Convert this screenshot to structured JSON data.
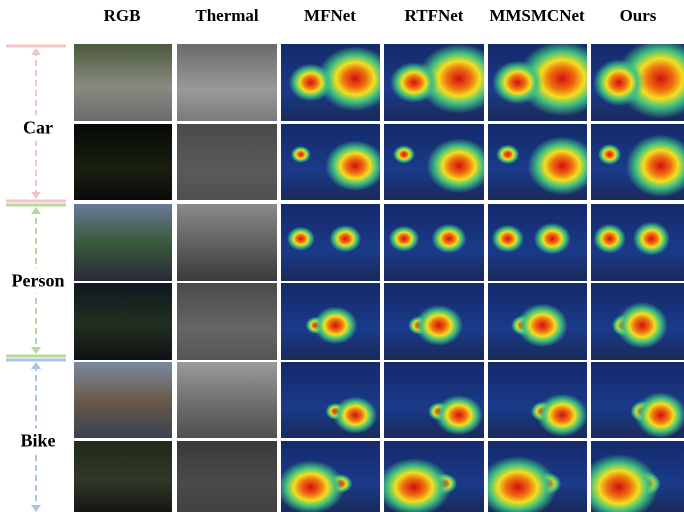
{
  "header": {
    "columns": [
      "RGB",
      "Thermal",
      "MFNet",
      "RTFNet",
      "MMSMCNet",
      "Ours"
    ]
  },
  "groups": [
    "Car",
    "Person",
    "Bike"
  ]
}
